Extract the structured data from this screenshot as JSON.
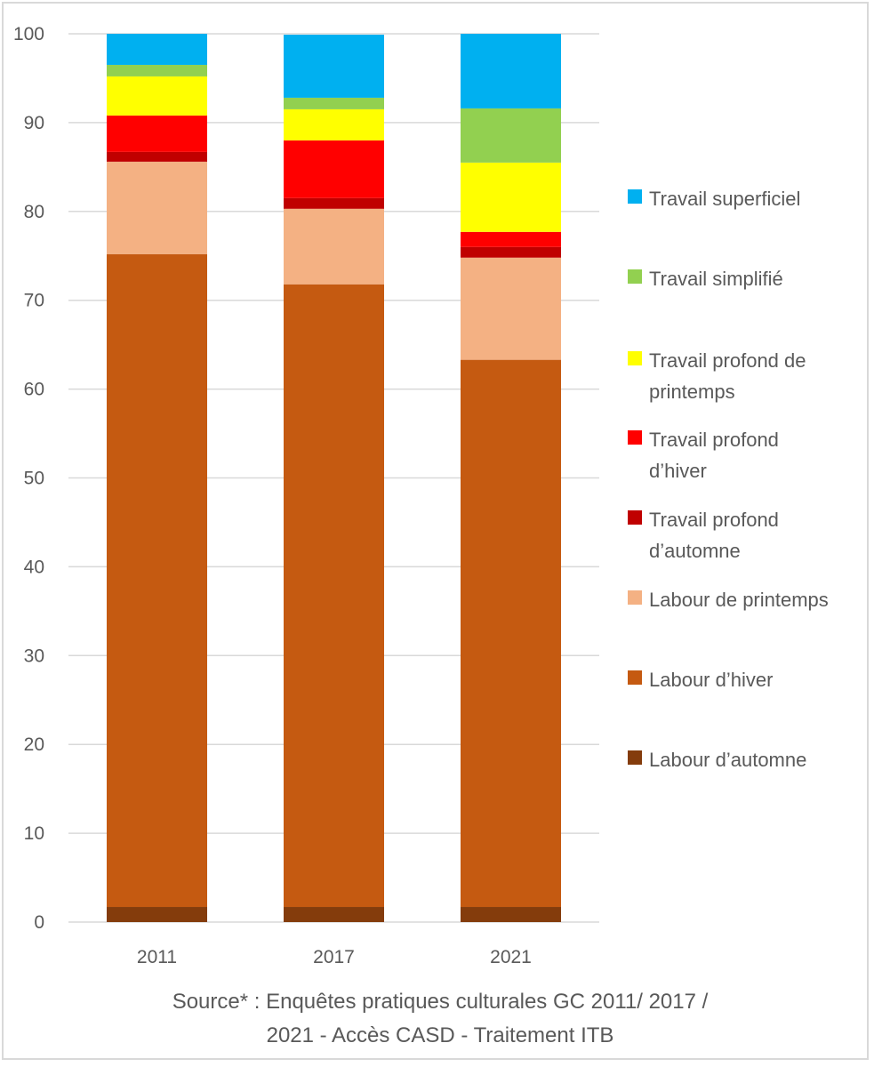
{
  "chart_data": {
    "type": "bar",
    "stacked": true,
    "title": "",
    "xlabel": "",
    "ylabel": "",
    "ylim": [
      0,
      100
    ],
    "yticks": [
      0,
      10,
      20,
      30,
      40,
      50,
      60,
      70,
      80,
      90,
      100
    ],
    "grid": "horizontal",
    "legend_position": "right",
    "categories": [
      "2011",
      "2017",
      "2021"
    ],
    "series": [
      {
        "name": "Labour d’automne",
        "color": "#843C0C",
        "values": [
          1.7,
          1.7,
          1.7
        ]
      },
      {
        "name": "Labour d’hiver",
        "color": "#C55A11",
        "values": [
          73.5,
          70.1,
          61.6
        ]
      },
      {
        "name": "Labour de printemps",
        "color": "#F4B183",
        "values": [
          10.4,
          8.5,
          11.5
        ]
      },
      {
        "name": "Travail profond d’automne",
        "color": "#C00000",
        "values": [
          1.1,
          1.2,
          1.2
        ]
      },
      {
        "name": "Travail profond d’hiver",
        "color": "#FF0000",
        "values": [
          4.1,
          6.5,
          1.7
        ]
      },
      {
        "name": "Travail profond de printemps",
        "color": "#FFFF00",
        "values": [
          4.4,
          3.5,
          7.8
        ]
      },
      {
        "name": "Travail simplifié",
        "color": "#92D050",
        "values": [
          1.3,
          1.3,
          6.1
        ]
      },
      {
        "name": "Travail superficiel",
        "color": "#00B0F0",
        "values": [
          3.5,
          7.1,
          8.4
        ]
      }
    ],
    "legend_order": [
      "Travail superficiel",
      "Travail simplifié",
      "Travail profond de printemps",
      "Travail profond d’hiver",
      "Travail profond d’automne",
      "Labour de printemps",
      "Labour d’hiver",
      "Labour d’automne"
    ],
    "annotation": "Source* : Enquêtes pratiques culturales GC 2011/ 2017 / 2021 - Accès CASD - Traitement ITB"
  },
  "legend": {
    "items": [
      {
        "label_line1": "Travail superficiel",
        "label_line2": "",
        "color": "#00B0F0"
      },
      {
        "label_line1": "Travail simplifié",
        "label_line2": "",
        "color": "#92D050"
      },
      {
        "label_line1": "Travail profond de",
        "label_line2": "printemps",
        "color": "#FFFF00"
      },
      {
        "label_line1": "Travail profond",
        "label_line2": "d’hiver",
        "color": "#FF0000"
      },
      {
        "label_line1": "Travail profond",
        "label_line2": "d’automne",
        "color": "#C00000"
      },
      {
        "label_line1": "Labour de printemps",
        "label_line2": "",
        "color": "#F4B183"
      },
      {
        "label_line1": "Labour d’hiver",
        "label_line2": "",
        "color": "#C55A11"
      },
      {
        "label_line1": "Labour d’automne",
        "label_line2": "",
        "color": "#843C0C"
      }
    ]
  },
  "source": {
    "line1": "Source* : Enquêtes pratiques culturales GC 2011/ 2017 /",
    "line2": "2021 - Accès CASD - Traitement ITB"
  }
}
